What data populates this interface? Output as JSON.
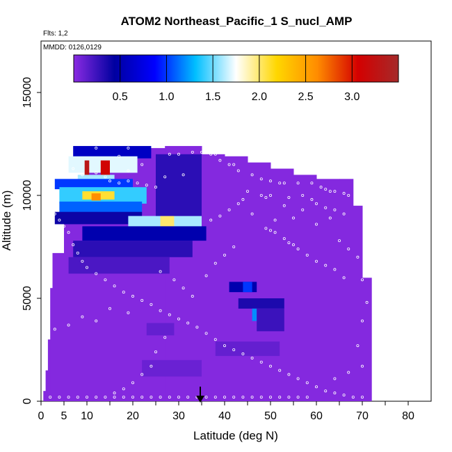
{
  "chart_data": {
    "type": "heatmap",
    "title": "ATOM2 Northeast_Pacific_1 S_nucl_AMP",
    "flights_label": "Flts: 1,2",
    "dates_label": "MMDD: 0126,0129",
    "xlabel": "Latitude (deg N)",
    "ylabel": "Altitude (m)",
    "xlim": [
      0,
      85
    ],
    "ylim": [
      0,
      17500
    ],
    "x_ticks": [
      0,
      5,
      10,
      20,
      30,
      40,
      50,
      60,
      70,
      80
    ],
    "x_minor_ticks": [
      15,
      25,
      35,
      45,
      55,
      65,
      75
    ],
    "y_ticks": [
      0,
      5000,
      10000,
      15000
    ],
    "colorbar": {
      "range": [
        0,
        3.5
      ],
      "ticks": [
        0.5,
        1.0,
        1.5,
        2.0,
        2.5,
        3.0
      ],
      "tick_labels": [
        "0.5",
        "1.0",
        "1.5",
        "2.0",
        "2.5",
        "3.0"
      ],
      "colors": [
        "#8a2be2",
        "#0000a0",
        "#0000ff",
        "#00bfff",
        "#ffffff",
        "#ffd700",
        "#ff8c00",
        "#d40000",
        "#a52a2a"
      ]
    },
    "background_value": 0.02,
    "envelope": [
      [
        0.5,
        0,
        500
      ],
      [
        1,
        0,
        1500
      ],
      [
        1.5,
        0,
        3000
      ],
      [
        2,
        0,
        5500
      ],
      [
        2.5,
        0,
        7200
      ],
      [
        5,
        0,
        10500
      ],
      [
        10,
        0,
        11500
      ],
      [
        15,
        0,
        12300
      ],
      [
        20,
        0,
        12300
      ],
      [
        25,
        0,
        12300
      ],
      [
        27,
        0,
        12400
      ],
      [
        32,
        0,
        12400
      ],
      [
        35,
        0,
        12000
      ],
      [
        40,
        0,
        11900
      ],
      [
        45,
        0,
        11600
      ],
      [
        50,
        0,
        11300
      ],
      [
        55,
        0,
        11000
      ],
      [
        60,
        0,
        10800
      ],
      [
        65,
        0,
        10800
      ],
      [
        68,
        0,
        9500
      ],
      [
        70,
        0,
        6000
      ],
      [
        72,
        0,
        3000
      ]
    ],
    "features": [
      {
        "lat": [
          7,
          24
        ],
        "alt": [
          11800,
          12400
        ],
        "value": 0.6
      },
      {
        "lat": [
          6,
          21
        ],
        "alt": [
          11100,
          11900
        ],
        "value": 1.7
      },
      {
        "lat": [
          9.5,
          10.5
        ],
        "alt": [
          10800,
          11700
        ],
        "value": 3.3
      },
      {
        "lat": [
          13,
          15
        ],
        "alt": [
          10900,
          11700
        ],
        "value": 3.1
      },
      {
        "lat": [
          8,
          16
        ],
        "alt": [
          10600,
          11000
        ],
        "value": 1.6
      },
      {
        "lat": [
          3,
          20
        ],
        "alt": [
          10300,
          10800
        ],
        "value": 1.0
      },
      {
        "lat": [
          4,
          23
        ],
        "alt": [
          9600,
          10400
        ],
        "value": 1.4
      },
      {
        "lat": [
          9,
          16
        ],
        "alt": [
          9800,
          10200
        ],
        "value": 2.1
      },
      {
        "lat": [
          11,
          13
        ],
        "alt": [
          9750,
          10100
        ],
        "value": 2.6
      },
      {
        "lat": [
          4,
          22
        ],
        "alt": [
          9100,
          9700
        ],
        "value": 1.1
      },
      {
        "lat": [
          3,
          22
        ],
        "alt": [
          8600,
          9200
        ],
        "value": 0.4
      },
      {
        "lat": [
          19,
          35
        ],
        "alt": [
          8400,
          9000
        ],
        "value": 1.6
      },
      {
        "lat": [
          26,
          29
        ],
        "alt": [
          8500,
          9000
        ],
        "value": 2.0
      },
      {
        "lat": [
          9,
          36
        ],
        "alt": [
          7800,
          8500
        ],
        "value": 0.5
      },
      {
        "lat": [
          7,
          33
        ],
        "alt": [
          7000,
          7800
        ],
        "value": 0.3
      },
      {
        "lat": [
          6,
          28
        ],
        "alt": [
          6200,
          7000
        ],
        "value": 0.2
      },
      {
        "lat": [
          25,
          35
        ],
        "alt": [
          9000,
          12000
        ],
        "value": 0.3
      },
      {
        "lat": [
          41,
          47
        ],
        "alt": [
          5300,
          5800
        ],
        "value": 0.5
      },
      {
        "lat": [
          44,
          46
        ],
        "alt": [
          5300,
          5800
        ],
        "value": 1.0
      },
      {
        "lat": [
          43,
          53
        ],
        "alt": [
          4500,
          5000
        ],
        "value": 0.35
      },
      {
        "lat": [
          46,
          47
        ],
        "alt": [
          3900,
          4500
        ],
        "value": 1.2
      },
      {
        "lat": [
          47,
          53
        ],
        "alt": [
          3400,
          4500
        ],
        "value": 0.25
      },
      {
        "lat": [
          38,
          52
        ],
        "alt": [
          2200,
          2900
        ],
        "value": 0.12
      },
      {
        "lat": [
          23,
          29
        ],
        "alt": [
          3200,
          3800
        ],
        "value": 0.12
      },
      {
        "lat": [
          22,
          35
        ],
        "alt": [
          1200,
          2000
        ],
        "value": 0.1
      }
    ],
    "sample_points": [
      [
        5.5,
        11300
      ],
      [
        6,
        11000
      ],
      [
        7,
        11300
      ],
      [
        9,
        11000
      ],
      [
        12,
        11100
      ],
      [
        14,
        10900
      ],
      [
        15,
        10700
      ],
      [
        17,
        10600
      ],
      [
        19,
        10700
      ],
      [
        21,
        10600
      ],
      [
        23,
        10500
      ],
      [
        25,
        10400
      ],
      [
        27,
        10900
      ],
      [
        31,
        11000
      ],
      [
        19,
        11200
      ],
      [
        22,
        11500
      ],
      [
        19,
        12300
      ],
      [
        12,
        12300
      ],
      [
        17,
        11900
      ],
      [
        28,
        12000
      ],
      [
        30,
        12000
      ],
      [
        33,
        12100
      ],
      [
        35,
        12100
      ],
      [
        37,
        12000
      ],
      [
        38,
        12000
      ],
      [
        39,
        11700
      ],
      [
        41,
        11500
      ],
      [
        42,
        11500
      ],
      [
        43,
        11200
      ],
      [
        46,
        11000
      ],
      [
        48,
        10800
      ],
      [
        50,
        10700
      ],
      [
        52,
        10600
      ],
      [
        53,
        10600
      ],
      [
        56,
        10600
      ],
      [
        59,
        10600
      ],
      [
        61,
        10400
      ],
      [
        62,
        10300
      ],
      [
        63,
        10200
      ],
      [
        64,
        10200
      ],
      [
        66,
        10100
      ],
      [
        67,
        10000
      ],
      [
        45,
        10200
      ],
      [
        48,
        10000
      ],
      [
        50,
        10000
      ],
      [
        54,
        9900
      ],
      [
        57,
        10000
      ],
      [
        59,
        9800
      ],
      [
        60,
        9600
      ],
      [
        62,
        9400
      ],
      [
        64,
        9300
      ],
      [
        66,
        9100
      ],
      [
        49,
        8400
      ],
      [
        50,
        8300
      ],
      [
        51,
        8200
      ],
      [
        53,
        7900
      ],
      [
        54,
        7700
      ],
      [
        55,
        7600
      ],
      [
        56,
        7400
      ],
      [
        58,
        7100
      ],
      [
        60,
        6800
      ],
      [
        62,
        6600
      ],
      [
        64,
        6400
      ],
      [
        66,
        6000
      ],
      [
        3,
        9100
      ],
      [
        4,
        8800
      ],
      [
        5,
        8500
      ],
      [
        6,
        8200
      ],
      [
        7,
        7600
      ],
      [
        8,
        7200
      ],
      [
        9,
        6800
      ],
      [
        10,
        6500
      ],
      [
        12,
        6200
      ],
      [
        14,
        5900
      ],
      [
        16,
        5600
      ],
      [
        18,
        5300
      ],
      [
        20,
        5100
      ],
      [
        22,
        4900
      ],
      [
        24,
        4700
      ],
      [
        26,
        4400
      ],
      [
        28,
        4200
      ],
      [
        30,
        4000
      ],
      [
        32,
        3800
      ],
      [
        34,
        3600
      ],
      [
        36,
        3300
      ],
      [
        38,
        3000
      ],
      [
        40,
        2700
      ],
      [
        42,
        2500
      ],
      [
        44,
        2300
      ],
      [
        46,
        2100
      ],
      [
        48,
        1900
      ],
      [
        50,
        1700
      ],
      [
        52,
        1500
      ],
      [
        54,
        1300
      ],
      [
        56,
        1100
      ],
      [
        58,
        900
      ],
      [
        60,
        700
      ],
      [
        62,
        500
      ],
      [
        64,
        400
      ],
      [
        66,
        300
      ],
      [
        68,
        200
      ],
      [
        70,
        200
      ],
      [
        2,
        200
      ],
      [
        4,
        200
      ],
      [
        6,
        200
      ],
      [
        8,
        200
      ],
      [
        10,
        200
      ],
      [
        12,
        200
      ],
      [
        14,
        200
      ],
      [
        16,
        200
      ],
      [
        18,
        200
      ],
      [
        20,
        200
      ],
      [
        22,
        200
      ],
      [
        24,
        200
      ],
      [
        26,
        200
      ],
      [
        28,
        200
      ],
      [
        30,
        200
      ],
      [
        32,
        200
      ],
      [
        34,
        200
      ],
      [
        36,
        200
      ],
      [
        38,
        200
      ],
      [
        40,
        200
      ],
      [
        42,
        200
      ],
      [
        44,
        200
      ],
      [
        46,
        200
      ],
      [
        48,
        200
      ],
      [
        50,
        200
      ],
      [
        52,
        200
      ],
      [
        54,
        200
      ],
      [
        56,
        200
      ],
      [
        58,
        200
      ],
      [
        3,
        3500
      ],
      [
        6,
        3700
      ],
      [
        9,
        4100
      ],
      [
        12,
        3900
      ],
      [
        15,
        4500
      ],
      [
        19,
        4300
      ],
      [
        37,
        8800
      ],
      [
        39,
        9000
      ],
      [
        41,
        9300
      ],
      [
        43,
        9600
      ],
      [
        44,
        9800
      ],
      [
        46,
        9100
      ],
      [
        49,
        9900
      ],
      [
        51,
        8800
      ],
      [
        53,
        9500
      ],
      [
        55,
        8900
      ],
      [
        57,
        9300
      ],
      [
        60,
        8600
      ],
      [
        63,
        8900
      ],
      [
        65,
        7800
      ],
      [
        67,
        7400
      ],
      [
        69,
        7000
      ],
      [
        70,
        5900
      ],
      [
        71,
        4800
      ],
      [
        70,
        3900
      ],
      [
        69,
        2700
      ],
      [
        70,
        1700
      ],
      [
        67,
        1400
      ],
      [
        64,
        1100
      ],
      [
        36,
        6100
      ],
      [
        38,
        6700
      ],
      [
        40,
        7100
      ],
      [
        42,
        7500
      ],
      [
        26,
        6300
      ],
      [
        29,
        5900
      ],
      [
        31,
        5500
      ],
      [
        33,
        5100
      ],
      [
        27,
        3100
      ],
      [
        25,
        2400
      ],
      [
        24,
        1700
      ],
      [
        22,
        1300
      ],
      [
        20,
        900
      ],
      [
        18,
        600
      ],
      [
        16,
        400
      ]
    ]
  }
}
